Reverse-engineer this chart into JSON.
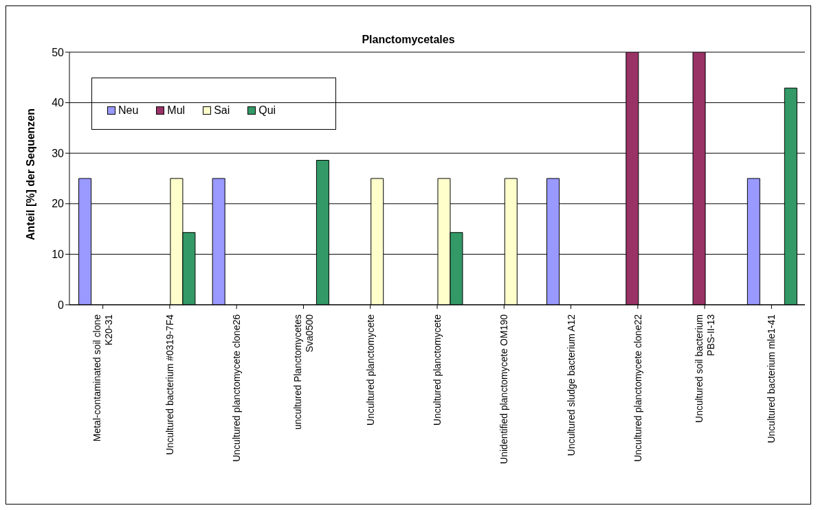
{
  "chart_data": {
    "type": "bar",
    "title": "Planctomycetales",
    "ylabel": "Anteil [%] der Sequenzen",
    "categories": [
      "Metal-contaminated soil clone K20-31",
      "Uncultured bacterium #0319-7F4",
      "Uncultured planctomycete clone26",
      "uncultured Planctomycetes Sva0500",
      "Uncultured planctomycete",
      "Uncultured planctomycete",
      "Unidentified planctomycete OM190",
      "Uncultured sludge bacterium A12",
      "Uncultured planctomycete clone22",
      "Uncultured soil bacterium PBS-II-13",
      "Uncultured bacterium mle1-41"
    ],
    "series": [
      {
        "name": "Neu",
        "color": "#9999ff",
        "values": [
          25,
          null,
          25,
          null,
          null,
          null,
          null,
          25,
          null,
          null,
          25
        ]
      },
      {
        "name": "Mul",
        "color": "#993366",
        "values": [
          null,
          null,
          null,
          null,
          null,
          null,
          null,
          null,
          50,
          50,
          null
        ]
      },
      {
        "name": "Sai",
        "color": "#ffffcc",
        "values": [
          null,
          25,
          null,
          null,
          25,
          25,
          25,
          null,
          null,
          null,
          null
        ]
      },
      {
        "name": "Qui",
        "color": "#339966",
        "values": [
          null,
          14.3,
          null,
          28.6,
          null,
          14.3,
          null,
          null,
          null,
          null,
          42.9
        ]
      }
    ],
    "ylim": [
      0,
      50
    ],
    "yticks": [
      0,
      10,
      20,
      30,
      40,
      50
    ],
    "grid": "y",
    "legend": "top left"
  }
}
